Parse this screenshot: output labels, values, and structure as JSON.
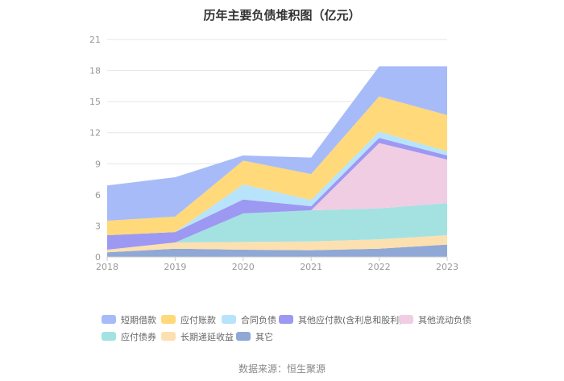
{
  "chart_data": {
    "type": "area",
    "title": "历年主要负债堆积图（亿元）",
    "xlabel": "",
    "ylabel": "",
    "categories": [
      "2018",
      "2019",
      "2020",
      "2021",
      "2022",
      "2023"
    ],
    "ylim": [
      0,
      21
    ],
    "yticks": [
      0,
      3,
      6,
      9,
      12,
      15,
      18,
      21
    ],
    "stacked": true,
    "grid": true,
    "legend_position": "bottom",
    "series": [
      {
        "name": "其它",
        "color": "#8fa8d6",
        "values": [
          0.45,
          0.8,
          0.7,
          0.65,
          0.8,
          1.2
        ]
      },
      {
        "name": "长期递延收益",
        "color": "#fde0b0",
        "values": [
          0.25,
          0.6,
          0.75,
          0.85,
          0.9,
          0.9
        ]
      },
      {
        "name": "应付债券",
        "color": "#a4e2e2",
        "values": [
          0,
          0,
          2.75,
          3.0,
          3.0,
          3.1
        ]
      },
      {
        "name": "其他流动负债",
        "color": "#f0cde3",
        "values": [
          0,
          0,
          0,
          0,
          6.3,
          4.2
        ]
      },
      {
        "name": "其他应付款(含利息和股利)",
        "color": "#9d99f2",
        "values": [
          1.4,
          1.0,
          1.35,
          0.4,
          0.5,
          0.4
        ]
      },
      {
        "name": "合同负债",
        "color": "#b7e4fb",
        "values": [
          0,
          0,
          1.45,
          0.6,
          0.6,
          0.4
        ]
      },
      {
        "name": "应付账款",
        "color": "#ffd97a",
        "values": [
          1.4,
          1.5,
          2.3,
          2.5,
          3.4,
          3.5
        ]
      },
      {
        "name": "短期借款",
        "color": "#a7bbf8",
        "values": [
          3.4,
          3.8,
          0.5,
          1.6,
          2.9,
          4.7
        ]
      }
    ],
    "legend_order": [
      "短期借款",
      "应付账款",
      "合同负债",
      "其他应付款(含利息和股利)",
      "其他流动负债",
      "应付债券",
      "长期递延收益",
      "其它"
    ]
  },
  "footer": {
    "source": "数据来源：恒生聚源"
  }
}
